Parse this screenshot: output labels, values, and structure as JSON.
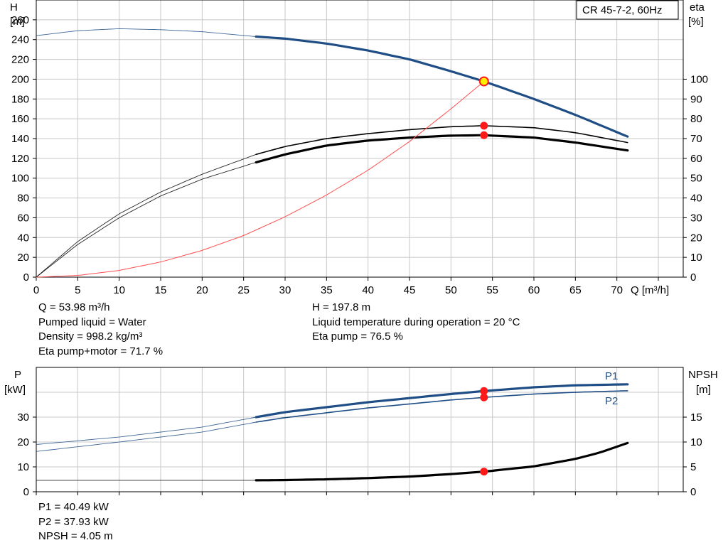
{
  "title_box": "CR 45-7-2, 60Hz",
  "colors": {
    "head": "#1f4e86",
    "power": "#1f4e86",
    "efficiency": "#000000",
    "npsh": "#000000",
    "system_curve": "#ff4d4d",
    "duty_point": "#ff1a1a",
    "duty_point_head": "#ffee00",
    "grid": "#c8c8c8",
    "extension_line": "#555555"
  },
  "top_info_left": [
    "Q = 53.98 m³/h",
    "Pumped liquid = Water",
    "Density = 998.2 kg/m³",
    "Eta pump+motor = 71.7 %"
  ],
  "top_info_right": [
    "H = 197.8 m",
    "Liquid temperature during operation = 20 °C",
    "Eta pump = 76.5 %"
  ],
  "bottom_info": [
    "P1 = 40.49 kW",
    "P2 = 37.93 kW",
    "NPSH = 4.05 m"
  ],
  "chart_data": [
    {
      "type": "line",
      "title": "CR 45-7-2, 60Hz",
      "xlabel": "Q [m³/h]",
      "ylabel_left": [
        "H",
        "[m]"
      ],
      "ylabel_right": [
        "eta",
        "[%]"
      ],
      "xlim": [
        0,
        78
      ],
      "ylim_left": [
        0,
        280
      ],
      "ylim_right": [
        0,
        140
      ],
      "x_ticks": [
        0,
        5,
        10,
        15,
        20,
        25,
        30,
        35,
        40,
        45,
        50,
        55,
        60,
        65,
        70
      ],
      "y_ticks_left": [
        0,
        20,
        40,
        60,
        80,
        100,
        120,
        140,
        160,
        180,
        200,
        220,
        240,
        260
      ],
      "y_ticks_right": [
        0,
        10,
        20,
        30,
        40,
        50,
        60,
        70,
        80,
        90,
        100
      ],
      "grid": true,
      "series": [
        {
          "name": "H",
          "axis": "left",
          "kind": "head",
          "x": [
            0,
            5,
            10,
            15,
            20,
            26.5,
            30,
            35,
            40,
            45,
            50,
            53.98,
            60,
            65,
            71.3
          ],
          "y": [
            244,
            249,
            251,
            250,
            248,
            243,
            241,
            236,
            229,
            220,
            208,
            197.8,
            180,
            164,
            142
          ]
        },
        {
          "name": "Eta pump",
          "axis": "right",
          "kind": "eta_pump",
          "x": [
            0,
            5,
            10,
            15,
            20,
            26.5,
            30,
            35,
            40,
            45,
            50,
            53.98,
            60,
            65,
            71.3
          ],
          "y": [
            0,
            18,
            32,
            43,
            52,
            62,
            66,
            70,
            72.5,
            74.5,
            76,
            76.5,
            75.5,
            73,
            68
          ]
        },
        {
          "name": "Eta pump+motor",
          "axis": "right",
          "kind": "eta_total",
          "x": [
            0,
            5,
            10,
            15,
            20,
            26.5,
            30,
            35,
            40,
            45,
            50,
            53.98,
            60,
            65,
            71.3
          ],
          "y": [
            0,
            16.5,
            30,
            41,
            49.5,
            58,
            62,
            66.5,
            69,
            70.5,
            71.5,
            71.7,
            70.5,
            68,
            64
          ]
        },
        {
          "name": "System curve",
          "axis": "left",
          "kind": "system",
          "x": [
            0,
            5,
            10,
            15,
            20,
            25,
            30,
            35,
            40,
            45,
            50,
            53.98
          ],
          "y": [
            0,
            1.7,
            6.8,
            15.3,
            27,
            42,
            61,
            83,
            108,
            137,
            170,
            197.8
          ]
        }
      ],
      "duty_points": [
        {
          "series": "H",
          "x": 53.98,
          "y": 197.8
        },
        {
          "series": "Eta pump",
          "x": 53.98,
          "y": 76.5
        },
        {
          "series": "Eta pump+motor",
          "x": 53.98,
          "y": 71.7
        }
      ],
      "valid_range_start": 26.5
    },
    {
      "type": "line",
      "xlabel": "",
      "ylabel_left": [
        "P",
        "[kW]"
      ],
      "ylabel_right": [
        "NPSH",
        "[m]"
      ],
      "xlim": [
        0,
        78
      ],
      "ylim_left": [
        0,
        50
      ],
      "ylim_right": [
        0,
        25
      ],
      "y_ticks_left": [
        0,
        10,
        20,
        30
      ],
      "y_ticks_right": [
        0,
        5,
        10,
        15
      ],
      "grid": true,
      "series": [
        {
          "name": "P1",
          "axis": "left",
          "kind": "p1",
          "x": [
            0,
            10,
            20,
            26.5,
            30,
            40,
            50,
            53.98,
            60,
            65,
            71.3
          ],
          "y": [
            19,
            22,
            26,
            30,
            32,
            36,
            39.3,
            40.49,
            42,
            42.8,
            43.2
          ]
        },
        {
          "name": "P2",
          "axis": "left",
          "kind": "p2",
          "x": [
            0,
            10,
            20,
            26.5,
            30,
            40,
            50,
            53.98,
            60,
            65,
            71.3
          ],
          "y": [
            16.2,
            20,
            24,
            28,
            29.8,
            33.7,
            36.9,
            37.93,
            39.3,
            40,
            40.6
          ]
        },
        {
          "name": "NPSH",
          "axis": "right",
          "kind": "npsh",
          "x": [
            0,
            26.5,
            30,
            35,
            40,
            45,
            50,
            53.98,
            60,
            65,
            68,
            71.3
          ],
          "y": [
            2.3,
            2.3,
            2.35,
            2.5,
            2.75,
            3.05,
            3.55,
            4.05,
            5.1,
            6.6,
            7.9,
            9.8
          ]
        }
      ],
      "duty_points": [
        {
          "series": "P1",
          "x": 53.98,
          "y": 40.49
        },
        {
          "series": "P2",
          "x": 53.98,
          "y": 37.93
        },
        {
          "series": "NPSH",
          "x": 53.98,
          "y": 4.05
        }
      ],
      "valid_range_start": 26.5
    }
  ]
}
